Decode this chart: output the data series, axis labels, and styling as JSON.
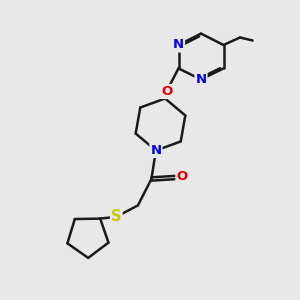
{
  "bg_color": "#e8e8e8",
  "bond_color": "#1a1a1a",
  "N_color": "#0000e0",
  "O_color": "#e00000",
  "S_color": "#c8c800",
  "bond_width": 1.8,
  "figsize": [
    3.0,
    3.0
  ],
  "dpi": 100,
  "xlim": [
    0,
    10
  ],
  "ylim": [
    0,
    10
  ]
}
